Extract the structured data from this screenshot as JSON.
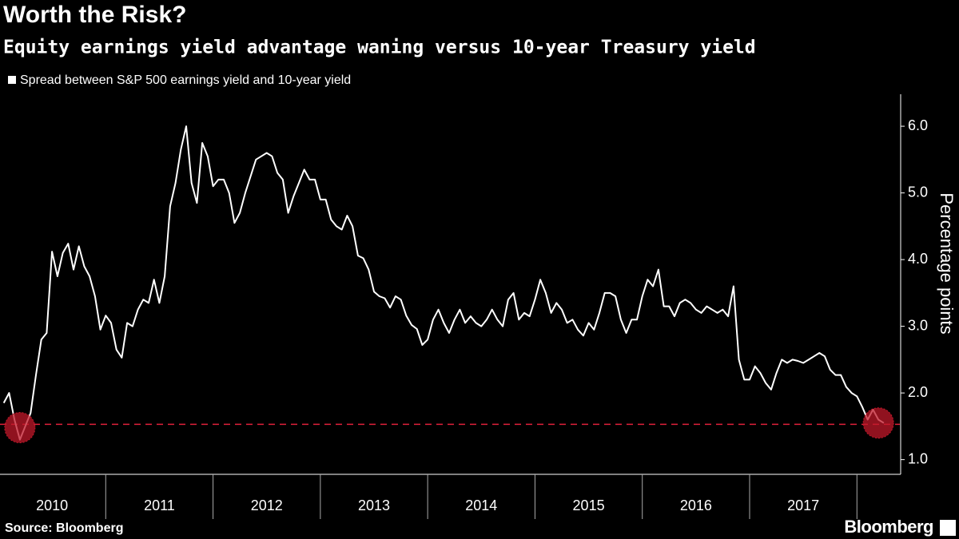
{
  "chart_data": {
    "type": "line",
    "title": "Worth the Risk?",
    "subtitle": "Equity earnings yield advantage waning versus 10-year Treasury yield",
    "y_axis_label": "Percentage points",
    "source": "Source: Bloomberg",
    "brand": "Bloomberg",
    "xlim": [
      2010,
      2018.4
    ],
    "xticks": [
      2011,
      2012,
      2013,
      2014,
      2015,
      2016,
      2017,
      2018
    ],
    "year_labels": [
      "2010",
      "2011",
      "2012",
      "2013",
      "2014",
      "2015",
      "2016",
      "2017"
    ],
    "ylim": [
      0.78,
      6.48
    ],
    "yticks": [
      {
        "value": 1,
        "label": "1.0"
      },
      {
        "value": 2,
        "label": "2.0"
      },
      {
        "value": 3,
        "label": "3.0"
      },
      {
        "value": 4,
        "label": "4.0"
      },
      {
        "value": 5,
        "label": "5.0"
      },
      {
        "value": 6,
        "label": "6.0"
      }
    ],
    "reference_line": {
      "value": 1.53,
      "color": "#e0203a"
    },
    "highlights": {
      "x": [
        2010.2,
        2018.2
      ],
      "y": [
        1.48,
        1.55
      ],
      "color": "#c0182a"
    },
    "series": [
      {
        "name": "Spread between S&P 500 earnings yield and 10-year yield",
        "color": "#ffffff",
        "x": [
          2010.05,
          2010.1,
          2010.15,
          2010.2,
          2010.25,
          2010.3,
          2010.35,
          2010.4,
          2010.45,
          2010.5,
          2010.55,
          2010.6,
          2010.65,
          2010.7,
          2010.75,
          2010.8,
          2010.85,
          2010.9,
          2010.95,
          2011,
          2011.05,
          2011.1,
          2011.15,
          2011.2,
          2011.25,
          2011.3,
          2011.35,
          2011.4,
          2011.45,
          2011.5,
          2011.55,
          2011.6,
          2011.65,
          2011.7,
          2011.75,
          2011.8,
          2011.85,
          2011.9,
          2011.95,
          2012,
          2012.05,
          2012.1,
          2012.15,
          2012.2,
          2012.25,
          2012.3,
          2012.35,
          2012.4,
          2012.45,
          2012.5,
          2012.55,
          2012.6,
          2012.65,
          2012.7,
          2012.75,
          2012.8,
          2012.85,
          2012.9,
          2012.95,
          2013,
          2013.05,
          2013.1,
          2013.15,
          2013.2,
          2013.25,
          2013.3,
          2013.35,
          2013.4,
          2013.45,
          2013.5,
          2013.55,
          2013.6,
          2013.65,
          2013.7,
          2013.75,
          2013.8,
          2013.85,
          2013.9,
          2013.95,
          2014,
          2014.05,
          2014.1,
          2014.15,
          2014.2,
          2014.25,
          2014.3,
          2014.35,
          2014.4,
          2014.45,
          2014.5,
          2014.55,
          2014.6,
          2014.65,
          2014.7,
          2014.75,
          2014.8,
          2014.85,
          2014.9,
          2014.95,
          2015,
          2015.05,
          2015.1,
          2015.15,
          2015.2,
          2015.25,
          2015.3,
          2015.35,
          2015.4,
          2015.45,
          2015.5,
          2015.55,
          2015.6,
          2015.65,
          2015.7,
          2015.75,
          2015.8,
          2015.85,
          2015.9,
          2015.95,
          2016,
          2016.05,
          2016.1,
          2016.15,
          2016.2,
          2016.25,
          2016.3,
          2016.35,
          2016.4,
          2016.45,
          2016.5,
          2016.55,
          2016.6,
          2016.65,
          2016.7,
          2016.75,
          2016.8,
          2016.85,
          2016.9,
          2016.95,
          2017,
          2017.05,
          2017.1,
          2017.15,
          2017.2,
          2017.25,
          2017.3,
          2017.35,
          2017.4,
          2017.45,
          2017.5,
          2017.55,
          2017.6,
          2017.65,
          2017.7,
          2017.75,
          2017.8,
          2017.85,
          2017.9,
          2017.95,
          2018,
          2018.05,
          2018.1,
          2018.15,
          2018.2,
          2018.25
        ],
        "values": [
          1.85,
          2.0,
          1.6,
          1.3,
          1.5,
          1.7,
          2.27,
          2.8,
          2.9,
          4.12,
          3.75,
          4.1,
          4.24,
          3.85,
          4.2,
          3.9,
          3.75,
          3.45,
          2.95,
          3.16,
          3.05,
          2.65,
          2.53,
          3.05,
          3.0,
          3.25,
          3.4,
          3.35,
          3.7,
          3.35,
          3.75,
          4.8,
          5.15,
          5.65,
          6.0,
          5.15,
          4.85,
          5.75,
          5.55,
          5.1,
          5.2,
          5.2,
          5.0,
          4.55,
          4.7,
          5.0,
          5.25,
          5.5,
          5.55,
          5.6,
          5.55,
          5.3,
          5.2,
          4.7,
          4.95,
          5.15,
          5.35,
          5.2,
          5.2,
          4.9,
          4.9,
          4.6,
          4.5,
          4.45,
          4.66,
          4.5,
          4.06,
          4.02,
          3.85,
          3.52,
          3.45,
          3.42,
          3.28,
          3.45,
          3.4,
          3.16,
          3.02,
          2.96,
          2.72,
          2.8,
          3.1,
          3.25,
          3.05,
          2.9,
          3.1,
          3.25,
          3.05,
          3.15,
          3.05,
          3.0,
          3.1,
          3.25,
          3.1,
          3.0,
          3.4,
          3.5,
          3.1,
          3.2,
          3.15,
          3.4,
          3.7,
          3.5,
          3.2,
          3.35,
          3.25,
          3.05,
          3.1,
          2.95,
          2.86,
          3.05,
          2.95,
          3.2,
          3.5,
          3.5,
          3.45,
          3.1,
          2.9,
          3.1,
          3.1,
          3.45,
          3.7,
          3.6,
          3.85,
          3.3,
          3.3,
          3.15,
          3.35,
          3.4,
          3.35,
          3.25,
          3.2,
          3.3,
          3.25,
          3.2,
          3.25,
          3.15,
          3.6,
          2.5,
          2.2,
          2.2,
          2.4,
          2.3,
          2.15,
          2.05,
          2.3,
          2.5,
          2.45,
          2.5,
          2.48,
          2.45,
          2.5,
          2.55,
          2.6,
          2.55,
          2.35,
          2.27,
          2.27,
          2.09,
          2.0,
          1.95,
          1.79,
          1.6,
          1.75,
          1.6,
          1.55
        ]
      }
    ]
  }
}
